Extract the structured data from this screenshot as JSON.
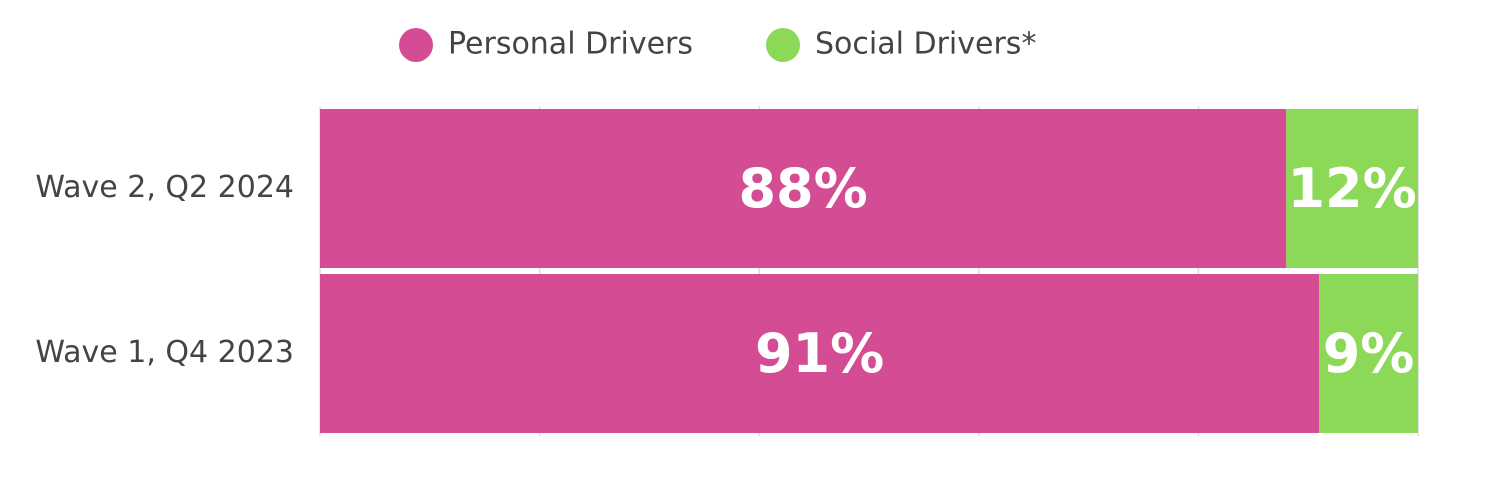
{
  "chart_data": {
    "type": "stacked-bar-horizontal",
    "categories": [
      "Wave 2, Q2 2024",
      "Wave 1, Q4 2023"
    ],
    "series": [
      {
        "name": "Personal Drivers",
        "color": "#d44c94",
        "values": [
          88,
          91
        ],
        "value_labels": [
          "88%",
          "91%"
        ]
      },
      {
        "name": "Social Drivers*",
        "color": "#8cd957",
        "values": [
          12,
          9
        ],
        "value_labels": [
          "12%",
          "9%"
        ]
      }
    ],
    "xlim": [
      0,
      100
    ],
    "xticks": [
      0,
      20,
      40,
      60,
      80,
      100
    ],
    "grid": true,
    "legend": "top"
  }
}
